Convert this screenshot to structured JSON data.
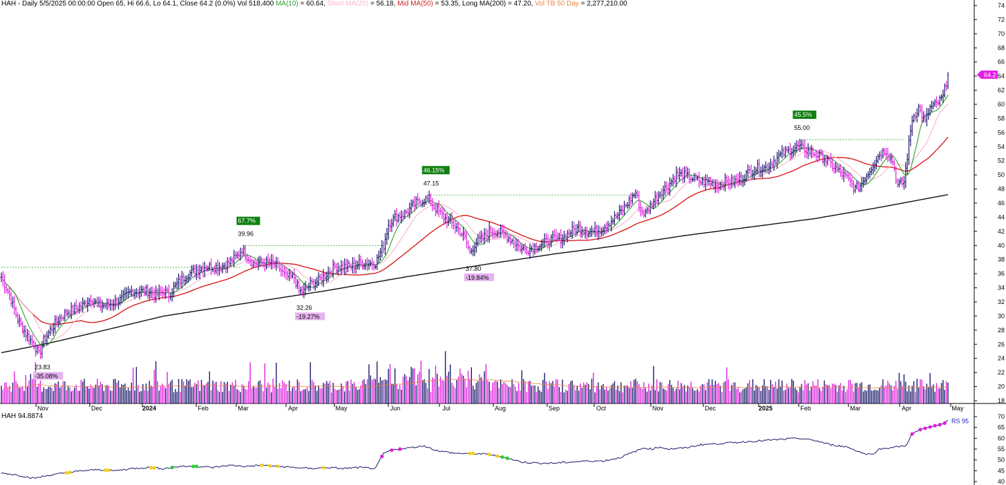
{
  "header": {
    "symbol": "HAH",
    "line1": " - Daily 5/5/2025 00:00:00 Open 65, Hi 66.6, Lo 64.1, Close 64.2 (0.0%) Vol 518,400 ",
    "ma10_label": "MA(10)",
    "ma10_value": " = 60.64, ",
    "short_label": "Short MA(20)",
    "short_value": " = 56.18, ",
    "mid_label": "Mid MA(50)",
    "mid_value": " = 53.35, Long MA(200) = 47.20, ",
    "vol_label": "Vol TB 50 Day",
    "vol_value": " = 2,277,210.00"
  },
  "rs_panel": {
    "title": "HAH 94.8874",
    "rs_label": "RS 95"
  },
  "colors": {
    "bar_up": "#1b1b6b",
    "bar_down": "#e020e0",
    "ma10": "#2ea02e",
    "ma20": "#f4b8c8",
    "ma50": "#d81e1e",
    "ma200": "#111111",
    "vol_avg": "#f08040",
    "rs_line": "#1b1b6b",
    "grid_dashed": "#33aa33"
  },
  "chart_data": [
    {
      "type": "line",
      "title": "HAH - Daily",
      "y_axis": {
        "min": 18,
        "max": 74,
        "ticks": [
          18,
          20,
          22,
          24,
          26,
          28,
          30,
          32,
          34,
          36,
          38,
          40,
          42,
          44,
          46,
          48,
          50,
          52,
          54,
          56,
          58,
          60,
          62,
          64,
          66,
          68,
          70,
          72,
          74
        ]
      },
      "x_labels": [
        "Nov",
        "Dec",
        "2024",
        "Feb",
        "Mar",
        "Apr",
        "May",
        "Jun",
        "Jul",
        "Aug",
        "Sep",
        "Oct",
        "Nov",
        "Dec",
        "2025",
        "Feb",
        "Mar",
        "Apr",
        "May"
      ],
      "price_anchors": [
        [
          0,
          35.5
        ],
        [
          5,
          33
        ],
        [
          10,
          29.5
        ],
        [
          15,
          27.5
        ],
        [
          20,
          26
        ],
        [
          23,
          24.5
        ],
        [
          26,
          26.5
        ],
        [
          30,
          28
        ],
        [
          35,
          29.5
        ],
        [
          40,
          30.5
        ],
        [
          45,
          31
        ],
        [
          50,
          31.5
        ],
        [
          55,
          32.5
        ],
        [
          60,
          31.5
        ],
        [
          65,
          31.5
        ],
        [
          70,
          32
        ],
        [
          75,
          32.5
        ],
        [
          80,
          33.5
        ],
        [
          85,
          33.5
        ],
        [
          90,
          33.5
        ],
        [
          95,
          33
        ],
        [
          100,
          33.5
        ],
        [
          103,
          33
        ],
        [
          106,
          34
        ],
        [
          110,
          35
        ],
        [
          115,
          36
        ],
        [
          120,
          36.5
        ],
        [
          125,
          37
        ],
        [
          130,
          37
        ],
        [
          135,
          37
        ],
        [
          140,
          37.5
        ],
        [
          145,
          38.5
        ],
        [
          148,
          39.5
        ],
        [
          151,
          38.5
        ],
        [
          155,
          37.5
        ],
        [
          160,
          37.5
        ],
        [
          165,
          37.5
        ],
        [
          170,
          37
        ],
        [
          175,
          35.5
        ],
        [
          180,
          35.5
        ],
        [
          183,
          33.5
        ],
        [
          186,
          33.5
        ],
        [
          190,
          34.5
        ],
        [
          195,
          35
        ],
        [
          200,
          36
        ],
        [
          205,
          37
        ],
        [
          210,
          37
        ],
        [
          215,
          37
        ],
        [
          220,
          37.5
        ],
        [
          225,
          37.5
        ],
        [
          230,
          37.5
        ],
        [
          235,
          40
        ],
        [
          238,
          43
        ],
        [
          242,
          44
        ],
        [
          248,
          44.5
        ],
        [
          255,
          46
        ],
        [
          260,
          46.5
        ],
        [
          263,
          46.5
        ],
        [
          266,
          45.5
        ],
        [
          272,
          44
        ],
        [
          278,
          43
        ],
        [
          282,
          42
        ],
        [
          285,
          41
        ],
        [
          288,
          39
        ],
        [
          292,
          40.5
        ],
        [
          296,
          41
        ],
        [
          300,
          42
        ],
        [
          305,
          42
        ],
        [
          310,
          41.5
        ],
        [
          315,
          40.5
        ],
        [
          320,
          39.5
        ],
        [
          325,
          39.5
        ],
        [
          330,
          40
        ],
        [
          335,
          40.5
        ],
        [
          340,
          41
        ],
        [
          345,
          41
        ],
        [
          350,
          42
        ],
        [
          355,
          42.5
        ],
        [
          360,
          42
        ],
        [
          365,
          42
        ],
        [
          370,
          42.5
        ],
        [
          375,
          43.5
        ],
        [
          380,
          44.5
        ],
        [
          385,
          46
        ],
        [
          390,
          47.5
        ],
        [
          393,
          45
        ],
        [
          396,
          44.5
        ],
        [
          400,
          46
        ],
        [
          405,
          47.5
        ],
        [
          410,
          48.5
        ],
        [
          415,
          50
        ],
        [
          420,
          50
        ],
        [
          425,
          49.5
        ],
        [
          430,
          49
        ],
        [
          435,
          49
        ],
        [
          440,
          48.5
        ],
        [
          445,
          49
        ],
        [
          450,
          49
        ],
        [
          455,
          49.5
        ],
        [
          460,
          50.5
        ],
        [
          465,
          51
        ],
        [
          470,
          51
        ],
        [
          475,
          52
        ],
        [
          480,
          53
        ],
        [
          485,
          53.5
        ],
        [
          490,
          54
        ],
        [
          495,
          53.5
        ],
        [
          500,
          53
        ],
        [
          505,
          52.5
        ],
        [
          510,
          51.5
        ],
        [
          515,
          50.5
        ],
        [
          520,
          49.5
        ],
        [
          525,
          48
        ],
        [
          528,
          48.5
        ],
        [
          532,
          50
        ],
        [
          536,
          51.5
        ],
        [
          540,
          53
        ],
        [
          544,
          53.5
        ],
        [
          548,
          52
        ],
        [
          551,
          48.5
        ],
        [
          555,
          49
        ],
        [
          560,
          58
        ],
        [
          564,
          59.5
        ],
        [
          568,
          57.5
        ],
        [
          571,
          59.5
        ],
        [
          575,
          60
        ],
        [
          579,
          61
        ],
        [
          582,
          64.2
        ]
      ],
      "volume_axis_note": "relative",
      "labels": [
        {
          "type": "low",
          "i": 23,
          "price": "23.83",
          "pct": "-35.08%"
        },
        {
          "type": "high",
          "i": 148,
          "price": "39.96",
          "pct": "67.7%"
        },
        {
          "type": "low",
          "i": 184,
          "price": "32.26",
          "pct": "-19.27%"
        },
        {
          "type": "high",
          "i": 262,
          "price": "47.15",
          "pct": "46.15%"
        },
        {
          "type": "low",
          "i": 288,
          "price": "37.80",
          "pct": "-19.84%"
        },
        {
          "type": "high",
          "i": 490,
          "price": "55.00",
          "pct": "45.5%"
        }
      ],
      "last_price_tag": "64.2",
      "mas": {
        "ma200": [
          [
            0,
            24.8
          ],
          [
            30,
            26.2
          ],
          [
            60,
            27.8
          ],
          [
            100,
            30.0
          ],
          [
            150,
            31.8
          ],
          [
            200,
            33.6
          ],
          [
            250,
            35.6
          ],
          [
            300,
            37.4
          ],
          [
            340,
            38.8
          ],
          [
            380,
            40.0
          ],
          [
            420,
            41.4
          ],
          [
            460,
            42.6
          ],
          [
            500,
            43.8
          ],
          [
            540,
            45.4
          ],
          [
            582,
            47.2
          ]
        ]
      }
    },
    {
      "type": "line",
      "title": "HAH 94.8874",
      "y_axis": {
        "min": 40,
        "max": 70,
        "ticks": [
          40,
          45,
          50,
          55,
          60,
          65,
          70
        ]
      },
      "series": [
        {
          "name": "RS 95",
          "points": [
            [
              0,
              44
            ],
            [
              10,
              43
            ],
            [
              20,
              41.5
            ],
            [
              30,
              43
            ],
            [
              40,
              44
            ],
            [
              50,
              45
            ],
            [
              60,
              45.5
            ],
            [
              70,
              45
            ],
            [
              80,
              46
            ],
            [
              90,
              46.5
            ],
            [
              100,
              46
            ],
            [
              110,
              47
            ],
            [
              120,
              47
            ],
            [
              130,
              46.5
            ],
            [
              140,
              47.5
            ],
            [
              150,
              47
            ],
            [
              160,
              47.5
            ],
            [
              170,
              47
            ],
            [
              180,
              46.5
            ],
            [
              190,
              46
            ],
            [
              200,
              46.5
            ],
            [
              210,
              46
            ],
            [
              220,
              46.5
            ],
            [
              230,
              46
            ],
            [
              235,
              53
            ],
            [
              240,
              54.5
            ],
            [
              245,
              55
            ],
            [
              250,
              55.5
            ],
            [
              255,
              56
            ],
            [
              260,
              56.5
            ],
            [
              265,
              55
            ],
            [
              270,
              54
            ],
            [
              280,
              53
            ],
            [
              290,
              53
            ],
            [
              300,
              52.5
            ],
            [
              310,
              51
            ],
            [
              320,
              49
            ],
            [
              330,
              48.5
            ],
            [
              340,
              48.5
            ],
            [
              350,
              49
            ],
            [
              360,
              49.5
            ],
            [
              370,
              49.5
            ],
            [
              380,
              51
            ],
            [
              390,
              54
            ],
            [
              395,
              55.5
            ],
            [
              400,
              55
            ],
            [
              405,
              56
            ],
            [
              410,
              55
            ],
            [
              420,
              55.5
            ],
            [
              430,
              57
            ],
            [
              440,
              57.5
            ],
            [
              450,
              58
            ],
            [
              460,
              58.5
            ],
            [
              470,
              59
            ],
            [
              480,
              59.5
            ],
            [
              490,
              60
            ],
            [
              500,
              59
            ],
            [
              510,
              57
            ],
            [
              520,
              56
            ],
            [
              530,
              53
            ],
            [
              535,
              52.5
            ],
            [
              540,
              55
            ],
            [
              550,
              56
            ],
            [
              556,
              56.5
            ],
            [
              560,
              62
            ],
            [
              565,
              64
            ],
            [
              570,
              65
            ],
            [
              575,
              66
            ],
            [
              579,
              66.5
            ],
            [
              582,
              68
            ]
          ]
        }
      ]
    }
  ]
}
